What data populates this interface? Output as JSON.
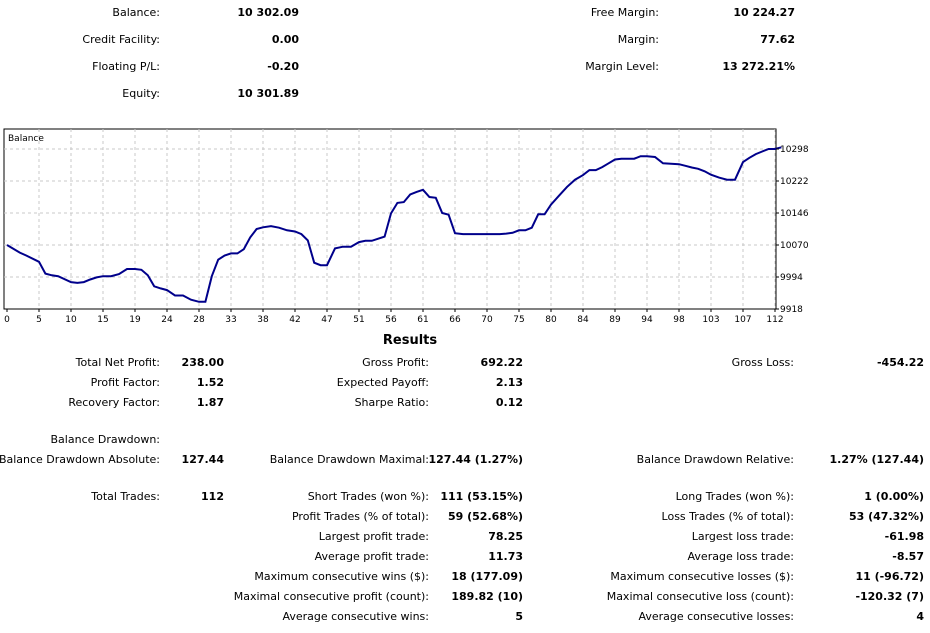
{
  "account": {
    "balance_label": "Balance:",
    "balance": "10 302.09",
    "credit_label": "Credit Facility:",
    "credit": "0.00",
    "floating_label": "Floating P/L:",
    "floating": "-0.20",
    "equity_label": "Equity:",
    "equity": "10 301.89",
    "free_margin_label": "Free Margin:",
    "free_margin": "10 224.27",
    "margin_label": "Margin:",
    "margin": "77.62",
    "margin_level_label": "Margin Level:",
    "margin_level": "13 272.21%"
  },
  "chart_data": {
    "type": "line",
    "title": "Balance",
    "x_ticks": [
      "0",
      "5",
      "10",
      "15",
      "19",
      "24",
      "28",
      "33",
      "38",
      "42",
      "47",
      "51",
      "56",
      "61",
      "66",
      "70",
      "75",
      "80",
      "84",
      "89",
      "94",
      "98",
      "103",
      "107",
      "112"
    ],
    "y_ticks": [
      "10298",
      "10222",
      "10146",
      "10070",
      "9994",
      "9918"
    ],
    "ylim": [
      9918,
      10298
    ],
    "xlim": [
      0,
      115
    ],
    "grid": true,
    "line_color": "#00008b",
    "x": [
      0,
      2,
      3,
      5,
      6,
      7,
      8,
      10,
      11,
      12,
      13,
      14,
      15,
      16,
      17,
      18,
      19,
      20,
      21,
      22,
      23,
      24,
      25,
      26,
      27,
      28,
      29,
      30,
      31,
      32,
      33,
      34,
      35,
      36,
      37,
      38,
      39,
      40,
      41,
      42,
      43,
      44,
      45,
      46,
      47,
      48,
      49,
      50,
      51,
      52,
      53,
      54,
      55,
      56,
      57,
      58,
      59,
      60,
      61,
      62,
      63,
      64,
      65,
      66,
      67,
      68,
      69,
      70,
      71,
      72,
      73,
      74,
      75,
      76,
      77,
      78,
      79,
      80,
      81,
      82,
      83,
      84,
      85,
      86,
      87,
      88,
      89,
      90,
      91,
      92,
      93,
      94,
      95,
      96,
      97,
      98,
      99,
      100,
      101,
      102,
      103,
      104,
      105,
      106,
      107,
      108,
      109,
      110,
      111,
      112,
      113
    ],
    "y": [
      10070,
      10052,
      10045,
      10030,
      10002,
      9998,
      9996,
      9982,
      9980,
      9982,
      9988,
      9993,
      9996,
      9996,
      10001,
      10013,
      10013,
      10011,
      9998,
      9972,
      9967,
      9963,
      9950,
      9950,
      9940,
      9935,
      9935,
      9996,
      10035,
      10045,
      10050,
      10050,
      10060,
      10088,
      10108,
      10112,
      10115,
      10111,
      10105,
      10102,
      10096,
      10081,
      10028,
      10022,
      10022,
      10062,
      10066,
      10066,
      10077,
      10080,
      10080,
      10085,
      10090,
      10145,
      10170,
      10172,
      10190,
      10196,
      10201,
      10184,
      10182,
      10146,
      10142,
      10098,
      10096,
      10096,
      10096,
      10096,
      10096,
      10096,
      10097,
      10099,
      10105,
      10105,
      10111,
      10143,
      10143,
      10166,
      10187,
      10208,
      10225,
      10236,
      10248,
      10248,
      10255,
      10264,
      10273,
      10275,
      10275,
      10275,
      10281,
      10281,
      10279,
      10264,
      10263,
      10262,
      10258,
      10254,
      10251,
      10245,
      10237,
      10230,
      10225,
      10225,
      10267,
      10277,
      10286,
      10292,
      10298,
      10298,
      10302
    ]
  },
  "results": {
    "title": "Results",
    "total_net_profit_label": "Total Net Profit:",
    "total_net_profit": "238.00",
    "gross_profit_label": "Gross Profit:",
    "gross_profit": "692.22",
    "gross_loss_label": "Gross Loss:",
    "gross_loss": "-454.22",
    "profit_factor_label": "Profit Factor:",
    "profit_factor": "1.52",
    "expected_payoff_label": "Expected Payoff:",
    "expected_payoff": "2.13",
    "recovery_factor_label": "Recovery Factor:",
    "recovery_factor": "1.87",
    "sharpe_ratio_label": "Sharpe Ratio:",
    "sharpe_ratio": "0.12",
    "balance_drawdown_label": "Balance Drawdown:",
    "bd_absolute_label": "Balance Drawdown Absolute:",
    "bd_absolute": "127.44",
    "bd_maximal_label": "Balance Drawdown Maximal:",
    "bd_maximal": "127.44 (1.27%)",
    "bd_relative_label": "Balance Drawdown Relative:",
    "bd_relative": "1.27% (127.44)",
    "total_trades_label": "Total Trades:",
    "total_trades": "112",
    "short_trades_label": "Short Trades (won %):",
    "short_trades": "111 (53.15%)",
    "long_trades_label": "Long Trades (won %):",
    "long_trades": "1 (0.00%)",
    "profit_trades_label": "Profit Trades (% of total):",
    "profit_trades": "59 (52.68%)",
    "loss_trades_label": "Loss Trades (% of total):",
    "loss_trades": "53 (47.32%)",
    "largest_profit_label": "Largest profit trade:",
    "largest_profit": "78.25",
    "largest_loss_label": "Largest loss trade:",
    "largest_loss": "-61.98",
    "average_profit_label": "Average profit trade:",
    "average_profit": "11.73",
    "average_loss_label": "Average loss trade:",
    "average_loss": "-8.57",
    "max_consec_wins_label": "Maximum consecutive wins ($):",
    "max_consec_wins": "18 (177.09)",
    "max_consec_losses_label": "Maximum consecutive losses ($):",
    "max_consec_losses": "11 (-96.72)",
    "maximal_consec_profit_label": "Maximal consecutive profit (count):",
    "maximal_consec_profit": "189.82 (10)",
    "maximal_consec_loss_label": "Maximal consecutive loss (count):",
    "maximal_consec_loss": "-120.32 (7)",
    "avg_consec_wins_label": "Average consecutive wins:",
    "avg_consec_wins": "5",
    "avg_consec_losses_label": "Average consecutive losses:",
    "avg_consec_losses": "4"
  }
}
